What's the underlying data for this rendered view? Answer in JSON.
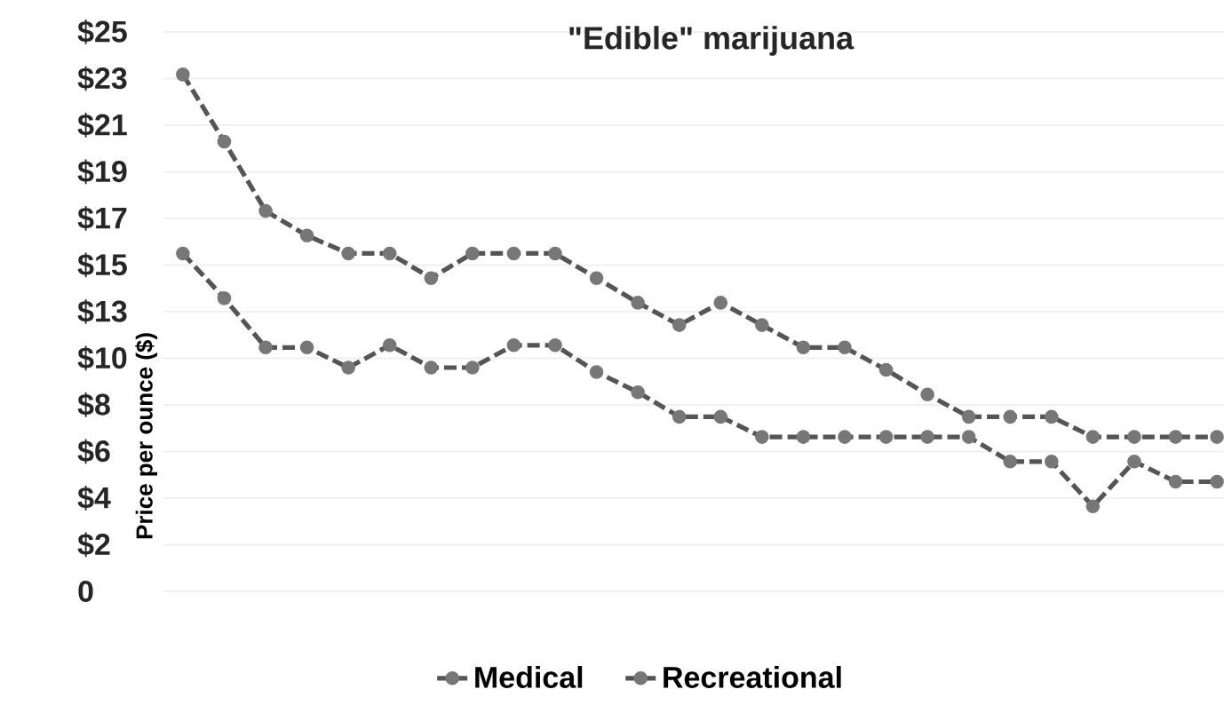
{
  "chart_data": {
    "type": "line",
    "title": "\"Edible\" marijuana",
    "ylabel": "Price per ounce ($)",
    "categories": [
      null,
      null,
      null,
      null,
      null,
      null,
      null,
      null,
      null,
      null,
      null,
      null,
      null,
      null,
      null,
      null,
      null,
      null,
      null,
      null,
      null,
      null,
      null,
      null,
      null,
      null
    ],
    "series": [
      {
        "name": "Medical",
        "color": "#555555",
        "values": [
          23.1,
          20.1,
          17.0,
          15.9,
          15.1,
          15.1,
          14.0,
          15.1,
          15.1,
          15.1,
          14.0,
          12.9,
          11.9,
          12.9,
          11.9,
          10.9,
          10.9,
          9.9,
          8.8,
          7.8,
          7.8,
          7.8,
          6.9,
          6.9,
          6.9,
          6.9
        ]
      },
      {
        "name": "Recreational",
        "color": "#555555",
        "values": [
          15.1,
          13.1,
          10.9,
          10.9,
          10.0,
          11.0,
          10.0,
          10.0,
          11.0,
          11.0,
          9.8,
          8.9,
          7.8,
          7.8,
          6.9,
          6.9,
          6.9,
          6.9,
          6.9,
          6.9,
          5.8,
          5.8,
          3.8,
          5.8,
          4.9,
          4.9
        ]
      }
    ],
    "ylim": [
      0,
      25
    ],
    "yticks": [
      {
        "value": 0,
        "label": "0"
      },
      {
        "value": 2.0833,
        "label": "$2"
      },
      {
        "value": 4.1667,
        "label": "$4"
      },
      {
        "value": 6.25,
        "label": "$6"
      },
      {
        "value": 8.3333,
        "label": "$8"
      },
      {
        "value": 10.4167,
        "label": "$10"
      },
      {
        "value": 12.5,
        "label": "$13"
      },
      {
        "value": 14.5833,
        "label": "$15"
      },
      {
        "value": 16.6667,
        "label": "$17"
      },
      {
        "value": 18.75,
        "label": "$19"
      },
      {
        "value": 20.8333,
        "label": "$21"
      },
      {
        "value": 22.9167,
        "label": "$23"
      },
      {
        "value": 25,
        "label": "$25"
      }
    ],
    "grid": "y",
    "legend": "bottom",
    "marker": "circle",
    "line_style": "dashed"
  }
}
